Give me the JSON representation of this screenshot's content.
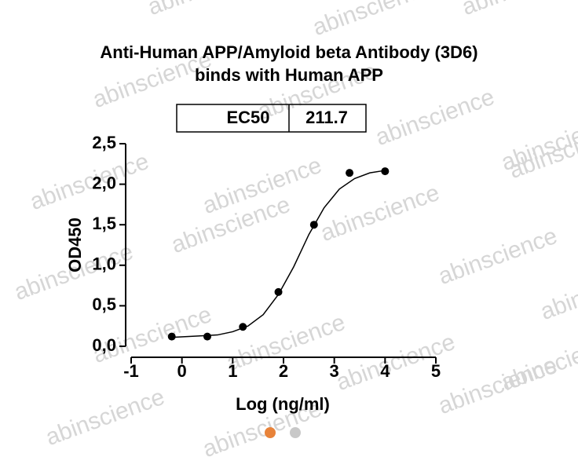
{
  "chart_data": {
    "type": "scatter",
    "title": [
      "Anti-Human APP/Amyloid beta Antibody (3D6)",
      "binds with Human APP"
    ],
    "ec50_label": "EC50",
    "ec50": "211.7",
    "x_label": "Log (ng/ml)",
    "y_label": "OD450",
    "watermark": "abinscience",
    "x": [
      -0.2,
      0.5,
      1.2,
      1.9,
      2.6,
      3.3,
      4.0
    ],
    "values": [
      0.12,
      0.12,
      0.24,
      0.67,
      1.5,
      2.14,
      2.16
    ],
    "color": "#000000",
    "fit_x": [
      -0.2,
      0.1,
      0.4,
      0.7,
      1.0,
      1.3,
      1.6,
      1.9,
      2.2,
      2.5,
      2.8,
      3.1,
      3.4,
      3.7,
      4.0
    ],
    "fit_values": [
      0.11,
      0.12,
      0.13,
      0.14,
      0.18,
      0.25,
      0.39,
      0.64,
      0.98,
      1.38,
      1.71,
      1.94,
      2.07,
      2.14,
      2.17
    ],
    "xlim": [
      -1,
      5
    ],
    "xticks": [
      -1,
      0,
      1,
      2,
      3,
      4,
      5
    ],
    "ylim": [
      0,
      2.5
    ],
    "yticks": [
      {
        "value": 0,
        "label": "0,0"
      },
      {
        "value": 0.5,
        "label": "0,5"
      },
      {
        "value": 1,
        "label": "1,0"
      },
      {
        "value": 1.5,
        "label": "1,5"
      },
      {
        "value": 2,
        "label": "2,0"
      },
      {
        "value": 2.5,
        "label": "2,5"
      }
    ]
  }
}
